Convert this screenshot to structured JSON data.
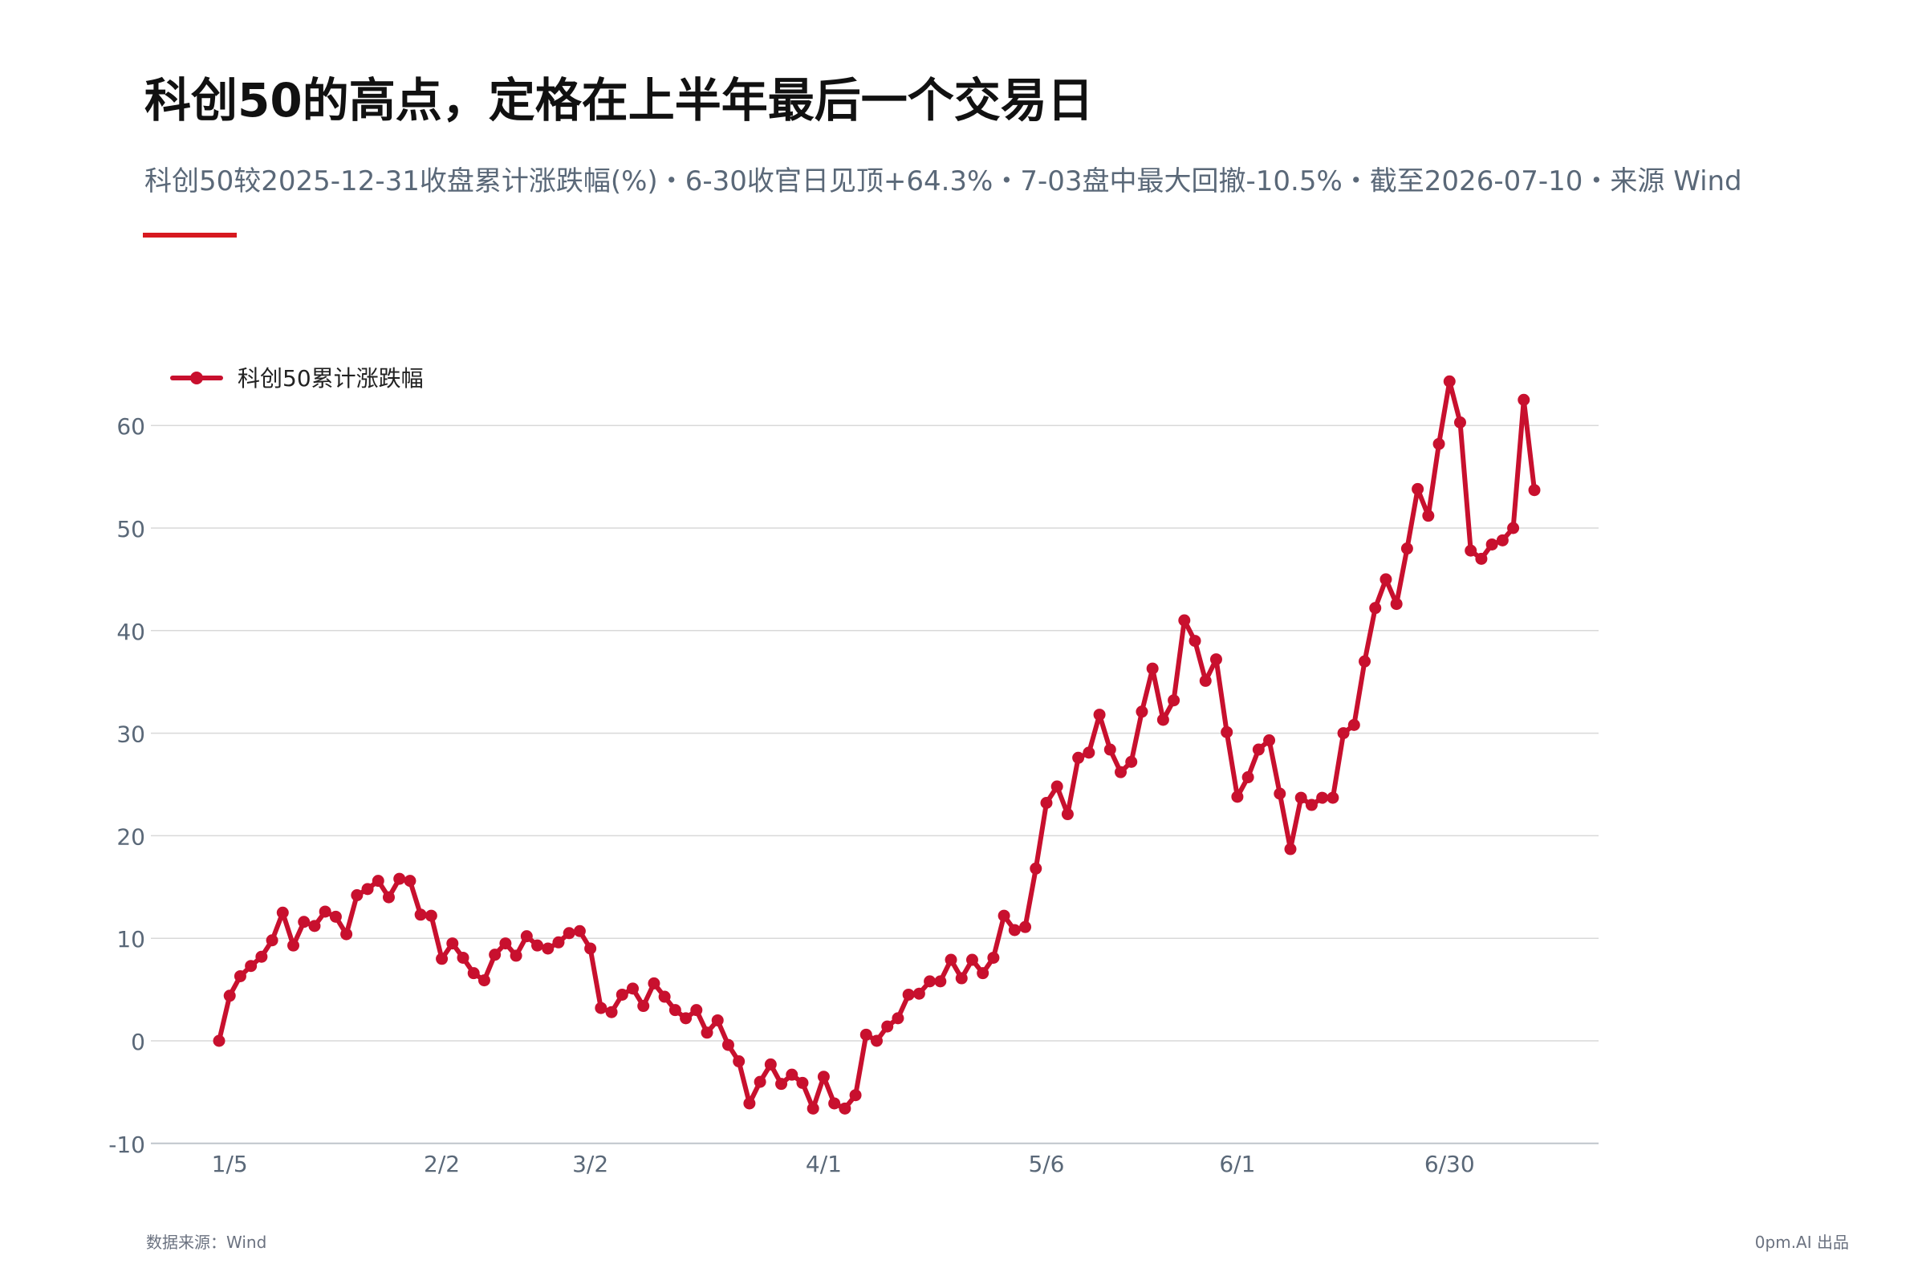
{
  "header": {
    "title": "科创50的高点，定格在上半年最后一个交易日",
    "subtitle": "科创50较2025-12-31收盘累计涨跌幅(%)・6-30收官日见顶+64.3%・7-03盘中最大回撤-10.5%・截至2026-07-10・来源 Wind"
  },
  "footer": {
    "source": "数据来源：Wind",
    "credit": "0pm.AI 出品"
  },
  "colors": {
    "series": "#c8102e",
    "accent": "#d71920",
    "grid": "#d9d9d9",
    "axis_text": "#5a6878"
  },
  "chart_data": {
    "type": "line",
    "legend_position": "top-left",
    "grid": true,
    "xlabel": "",
    "ylabel": "",
    "ylim": [
      -10,
      65
    ],
    "yticks": [
      -10,
      0,
      10,
      20,
      30,
      40,
      50,
      60
    ],
    "xtick_labels": [
      {
        "label": "1/5",
        "index": 1
      },
      {
        "label": "2/2",
        "index": 21
      },
      {
        "label": "3/2",
        "index": 35
      },
      {
        "label": "4/1",
        "index": 57
      },
      {
        "label": "5/6",
        "index": 78
      },
      {
        "label": "6/1",
        "index": 96
      },
      {
        "label": "6/30",
        "index": 116
      }
    ],
    "series": [
      {
        "name": "科创50累计涨跌幅",
        "values": [
          0,
          4.4,
          6.3,
          7.3,
          8.2,
          9.8,
          12.5,
          9.3,
          11.6,
          11.2,
          12.6,
          12.1,
          10.4,
          14.2,
          14.8,
          15.6,
          14.0,
          15.8,
          15.6,
          12.3,
          12.2,
          8.0,
          9.5,
          8.1,
          6.6,
          5.9,
          8.4,
          9.5,
          8.3,
          10.2,
          9.3,
          9.0,
          9.6,
          10.5,
          10.7,
          9.0,
          3.2,
          2.8,
          4.5,
          5.1,
          3.4,
          5.6,
          4.3,
          3.0,
          2.2,
          3.0,
          0.8,
          2.0,
          -0.4,
          -2.0,
          -6.1,
          -4.0,
          -2.3,
          -4.2,
          -3.3,
          -4.1,
          -6.6,
          -3.5,
          -6.1,
          -6.6,
          -5.3,
          0.6,
          0.0,
          1.4,
          2.2,
          4.5,
          4.6,
          5.8,
          5.8,
          7.9,
          6.1,
          7.9,
          6.6,
          8.1,
          12.2,
          10.8,
          11.1,
          16.8,
          23.2,
          24.8,
          22.1,
          27.6,
          28.1,
          31.8,
          28.4,
          26.2,
          27.2,
          32.1,
          36.3,
          31.3,
          33.2,
          41.0,
          39.0,
          35.1,
          37.2,
          30.1,
          23.8,
          25.7,
          28.4,
          29.3,
          24.1,
          18.7,
          23.7,
          23.0,
          23.7,
          23.7,
          30.0,
          30.8,
          37.0,
          42.2,
          45.0,
          42.6,
          48.0,
          53.8,
          51.2,
          58.2,
          64.3,
          60.3,
          47.8,
          47.0,
          48.4,
          48.8,
          50.0,
          62.5,
          53.7
        ]
      }
    ]
  }
}
